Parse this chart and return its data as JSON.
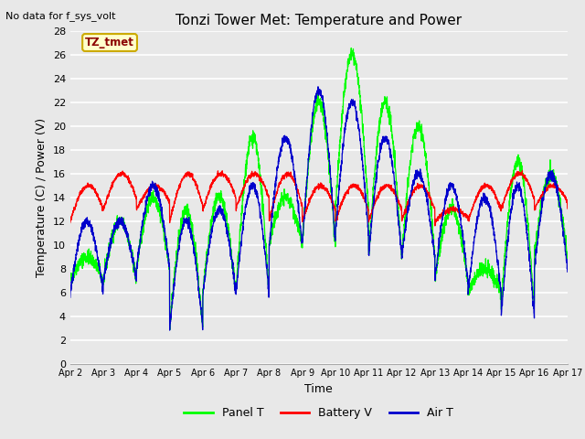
{
  "title": "Tonzi Tower Met: Temperature and Power",
  "xlabel": "Time",
  "ylabel": "Temperature (C) / Power (V)",
  "top_left_note": "No data for f_sys_volt",
  "annotation_label": "TZ_tmet",
  "annotation_box_facecolor": "#FFFFCC",
  "annotation_box_edgecolor": "#CCAA00",
  "ylim": [
    0,
    28
  ],
  "yticks": [
    0,
    2,
    4,
    6,
    8,
    10,
    12,
    14,
    16,
    18,
    20,
    22,
    24,
    26,
    28
  ],
  "xtick_labels": [
    "Apr 2",
    "Apr 3",
    "Apr 4",
    "Apr 5",
    "Apr 6",
    "Apr 7",
    "Apr 8",
    "Apr 9",
    "Apr 10",
    "Apr 11",
    "Apr 12",
    "Apr 13",
    "Apr 14",
    "Apr 15",
    "Apr 16",
    "Apr 17"
  ],
  "bg_color": "#E8E8E8",
  "plot_bg_color": "#E8E8E8",
  "grid_color": "#FFFFFF",
  "panel_color": "#00FF00",
  "battery_color": "#FF0000",
  "air_color": "#0000CC",
  "legend_labels": [
    "Panel T",
    "Battery V",
    "Air T"
  ]
}
